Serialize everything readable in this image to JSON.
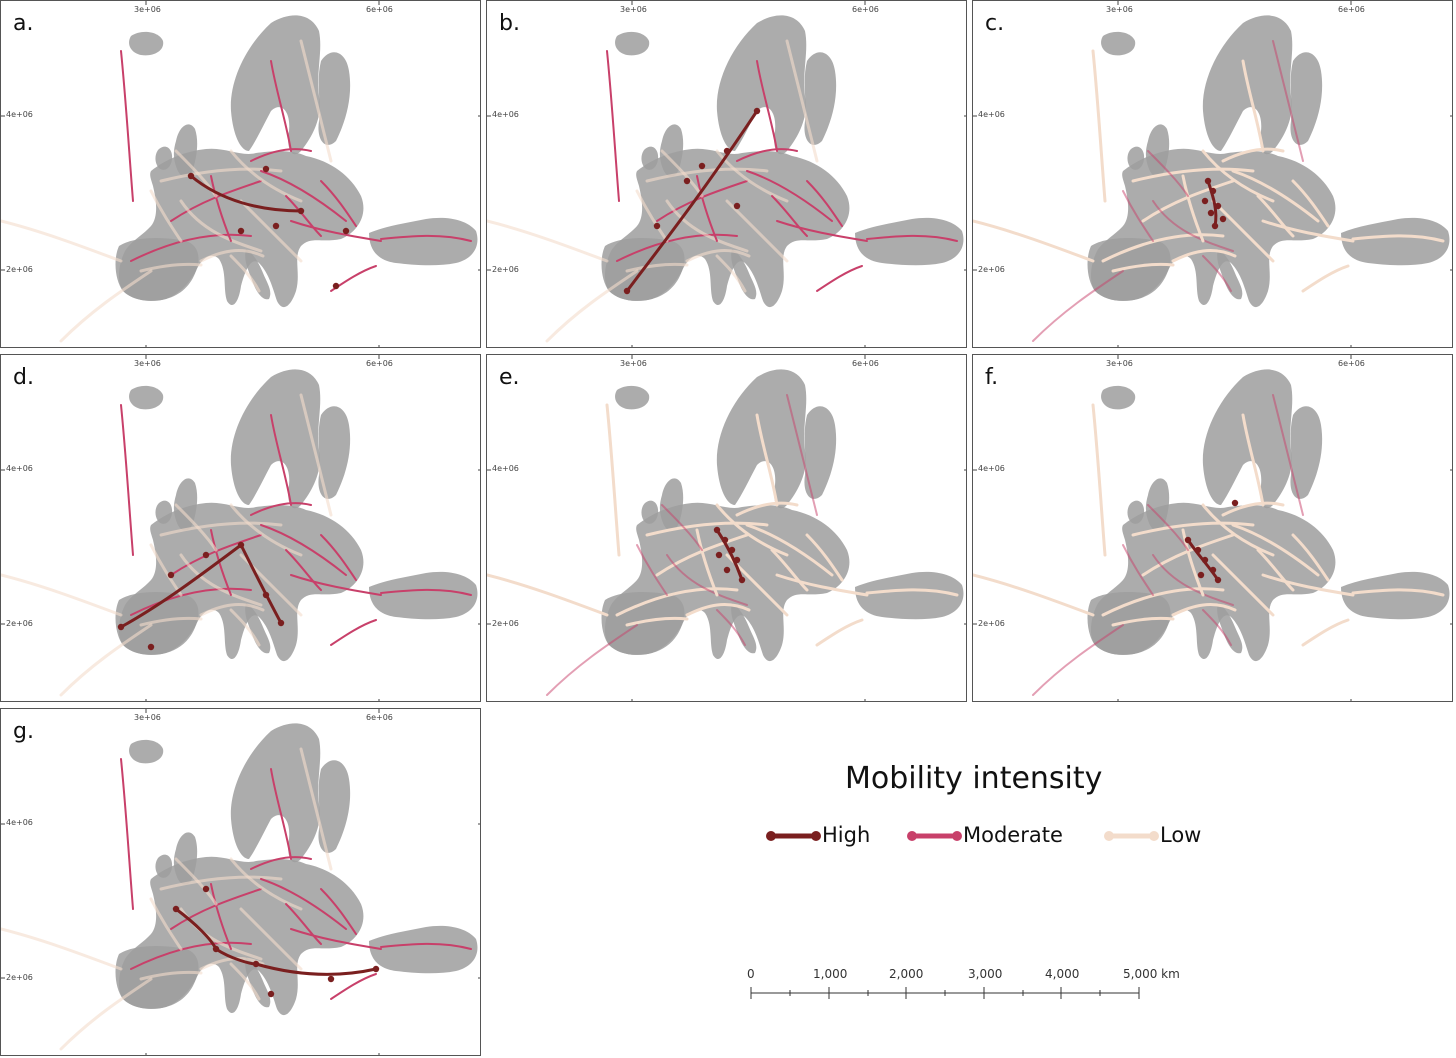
{
  "axis_ticks": {
    "x": [
      "3e+06",
      "6e+06"
    ],
    "y": [
      "4e+06",
      "2e+06"
    ]
  },
  "panels": [
    {
      "letter": "a.",
      "dominant": "moderate"
    },
    {
      "letter": "b.",
      "dominant": "moderate"
    },
    {
      "letter": "c.",
      "dominant": "low"
    },
    {
      "letter": "d.",
      "dominant": "moderate"
    },
    {
      "letter": "e.",
      "dominant": "low"
    },
    {
      "letter": "f.",
      "dominant": "low"
    },
    {
      "letter": "g.",
      "dominant": "moderate"
    }
  ],
  "legend": {
    "title": "Mobility intensity",
    "items": [
      {
        "label": "High",
        "color": "#7a1f1f"
      },
      {
        "label": "Moderate",
        "color": "#c8406a"
      },
      {
        "label": "Low",
        "color": "#f3dccb"
      }
    ]
  },
  "scale": {
    "ticks": [
      "0",
      "1,000",
      "2,000",
      "3,000",
      "4,000",
      "5,000 km"
    ]
  },
  "colors": {
    "land": "#9e9e9e",
    "border": "#555555"
  }
}
